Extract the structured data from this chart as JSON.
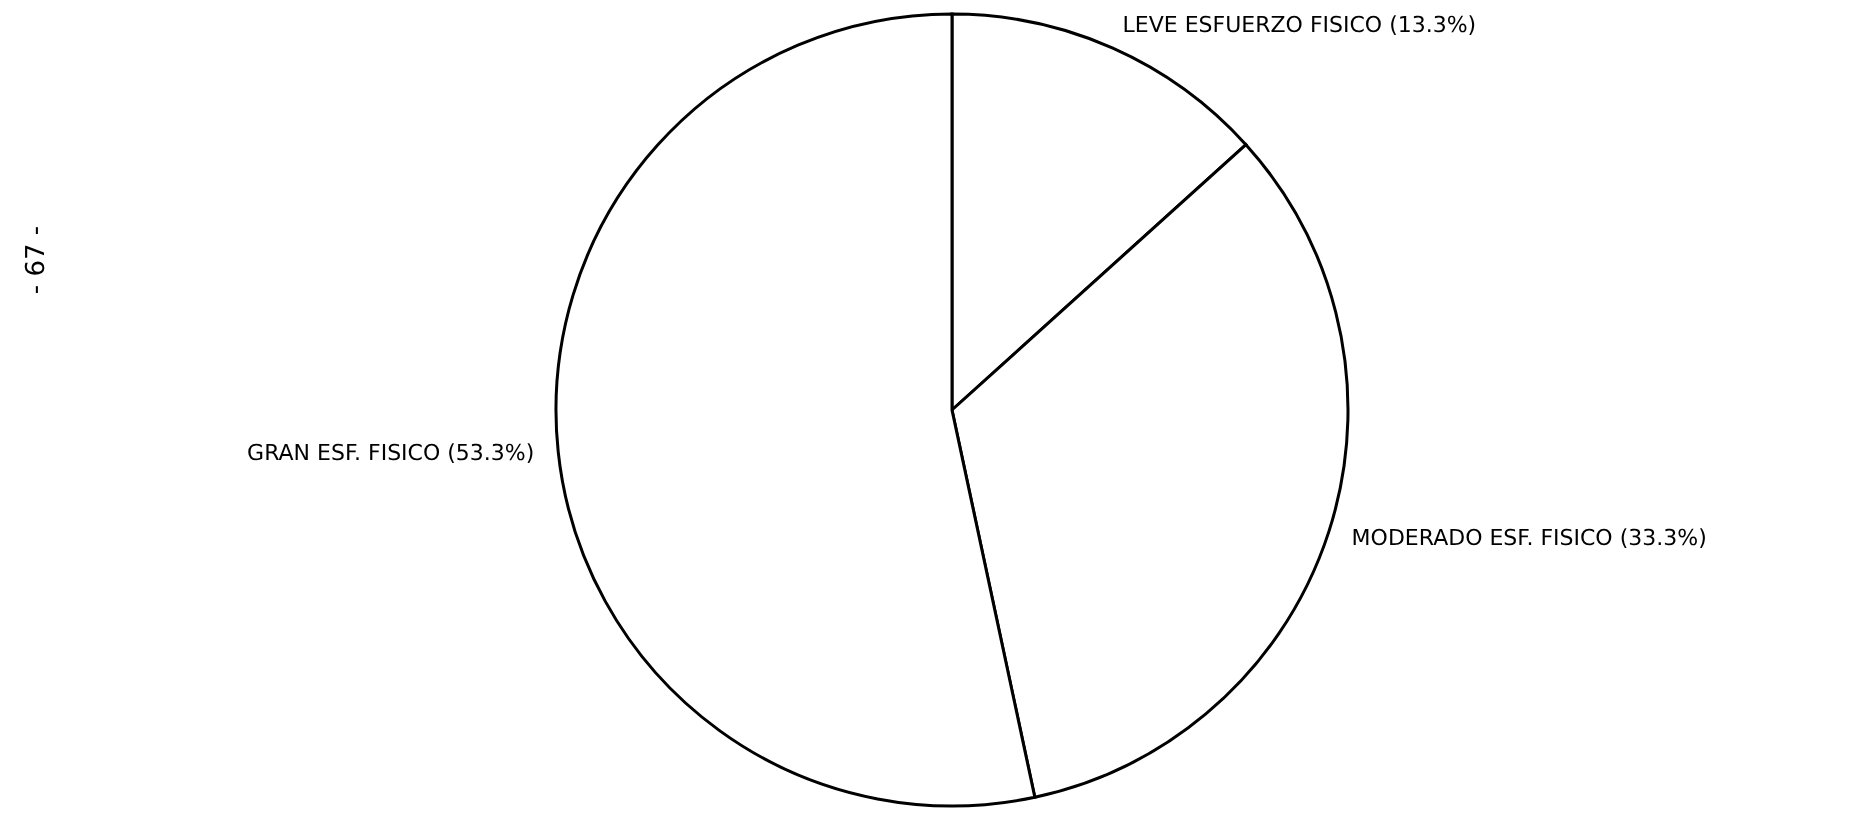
{
  "chart_data": {
    "type": "pie",
    "categories": [
      "LEVE ESFUERZO FISICO",
      "MODERADO ESF. FISICO",
      "GRAN ESF. FISICO"
    ],
    "values": [
      13.3,
      33.3,
      53.3
    ],
    "value_labels": [
      "(13.3%)",
      "(33.3%)",
      "(53.3%)"
    ],
    "colors": [
      "#ffffff",
      "#ffffff",
      "#ffffff"
    ],
    "annotations": [
      "- 67 -"
    ]
  }
}
